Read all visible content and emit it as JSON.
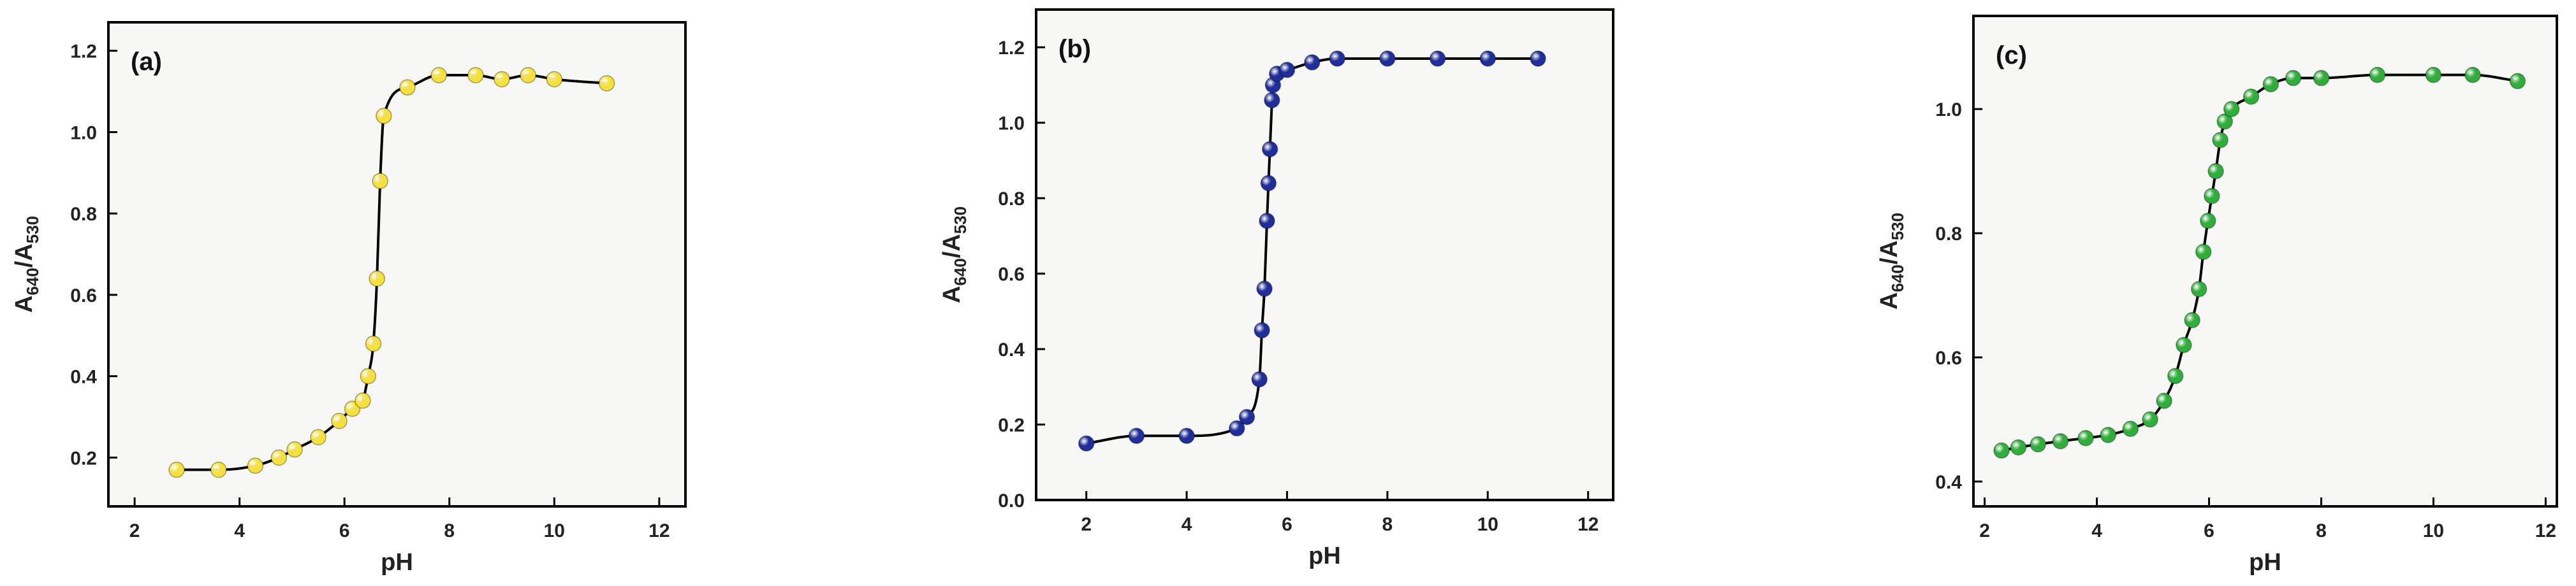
{
  "chart_data": [
    {
      "type": "line",
      "panel_label": "(a)",
      "xlabel": "pH",
      "ylabel_main": "A",
      "ylabel_sub1": "640",
      "ylabel_sep": "/A",
      "ylabel_sub2": "530",
      "xlim": [
        1.5,
        12.5
      ],
      "ylim": [
        0.08,
        1.27
      ],
      "xticks": [
        2,
        4,
        6,
        8,
        10,
        12
      ],
      "yticks": [
        0.2,
        0.4,
        0.6,
        0.8,
        1.0,
        1.2
      ],
      "x_tick_labels": [
        "2",
        "4",
        "6",
        "8",
        "10",
        "12"
      ],
      "y_tick_labels": [
        "0.2",
        "0.4",
        "0.6",
        "0.8",
        "1.0",
        "1.2"
      ],
      "marker_color": "#f5e13a",
      "x": [
        2.8,
        3.6,
        4.3,
        4.75,
        5.05,
        5.5,
        5.9,
        6.15,
        6.35,
        6.45,
        6.55,
        6.62,
        6.68,
        6.75,
        7.2,
        7.8,
        8.5,
        9.0,
        9.5,
        10.0,
        11.0
      ],
      "y": [
        0.17,
        0.17,
        0.18,
        0.2,
        0.22,
        0.25,
        0.29,
        0.32,
        0.34,
        0.4,
        0.48,
        0.64,
        0.88,
        1.04,
        1.11,
        1.14,
        1.14,
        1.13,
        1.14,
        1.13,
        1.12
      ]
    },
    {
      "type": "line",
      "panel_label": "(b)",
      "xlabel": "pH",
      "ylabel_main": "A",
      "ylabel_sub1": "640",
      "ylabel_sep": "/A",
      "ylabel_sub2": "530",
      "xlim": [
        1,
        12.5
      ],
      "ylim": [
        0.0,
        1.3
      ],
      "xticks": [
        2,
        4,
        6,
        8,
        10,
        12
      ],
      "yticks": [
        0.0,
        0.2,
        0.4,
        0.6,
        0.8,
        1.0,
        1.2
      ],
      "x_tick_labels": [
        "2",
        "4",
        "6",
        "8",
        "10",
        "12"
      ],
      "y_tick_labels": [
        "0.0",
        "0.2",
        "0.4",
        "0.6",
        "0.8",
        "1.0",
        "1.2"
      ],
      "marker_color": "#1f2e9a",
      "x": [
        2.0,
        3.0,
        4.0,
        5.0,
        5.2,
        5.45,
        5.5,
        5.55,
        5.6,
        5.63,
        5.66,
        5.7,
        5.72,
        5.8,
        6.0,
        6.5,
        7.0,
        8.0,
        9.0,
        10.0,
        11.0
      ],
      "y": [
        0.15,
        0.17,
        0.17,
        0.19,
        0.22,
        0.32,
        0.45,
        0.56,
        0.74,
        0.84,
        0.93,
        1.06,
        1.1,
        1.13,
        1.14,
        1.16,
        1.17,
        1.17,
        1.17,
        1.17,
        1.17
      ]
    },
    {
      "type": "line",
      "panel_label": "(c)",
      "xlabel": "pH",
      "ylabel_main": "A",
      "ylabel_sub1": "640",
      "ylabel_sep": "/A",
      "ylabel_sub2": "530",
      "xlim": [
        1.8,
        12.2
      ],
      "ylim": [
        0.36,
        1.15
      ],
      "xticks": [
        2,
        4,
        6,
        8,
        10,
        12
      ],
      "yticks": [
        0.4,
        0.6,
        0.8,
        1.0
      ],
      "x_tick_labels": [
        "2",
        "4",
        "6",
        "8",
        "10",
        "12"
      ],
      "y_tick_labels": [
        "0.4",
        "0.6",
        "0.8",
        "1.0"
      ],
      "marker_color": "#2fae3a",
      "x": [
        2.3,
        2.6,
        2.95,
        3.35,
        3.8,
        4.2,
        4.6,
        4.95,
        5.2,
        5.4,
        5.55,
        5.7,
        5.82,
        5.9,
        5.98,
        6.05,
        6.12,
        6.2,
        6.28,
        6.4,
        6.75,
        7.1,
        7.5,
        8.0,
        9.0,
        10.0,
        10.7,
        11.5
      ],
      "y": [
        0.45,
        0.455,
        0.46,
        0.465,
        0.47,
        0.475,
        0.485,
        0.5,
        0.53,
        0.57,
        0.62,
        0.66,
        0.71,
        0.77,
        0.82,
        0.86,
        0.9,
        0.95,
        0.98,
        1.0,
        1.02,
        1.04,
        1.05,
        1.05,
        1.055,
        1.055,
        1.055,
        1.045
      ]
    }
  ]
}
